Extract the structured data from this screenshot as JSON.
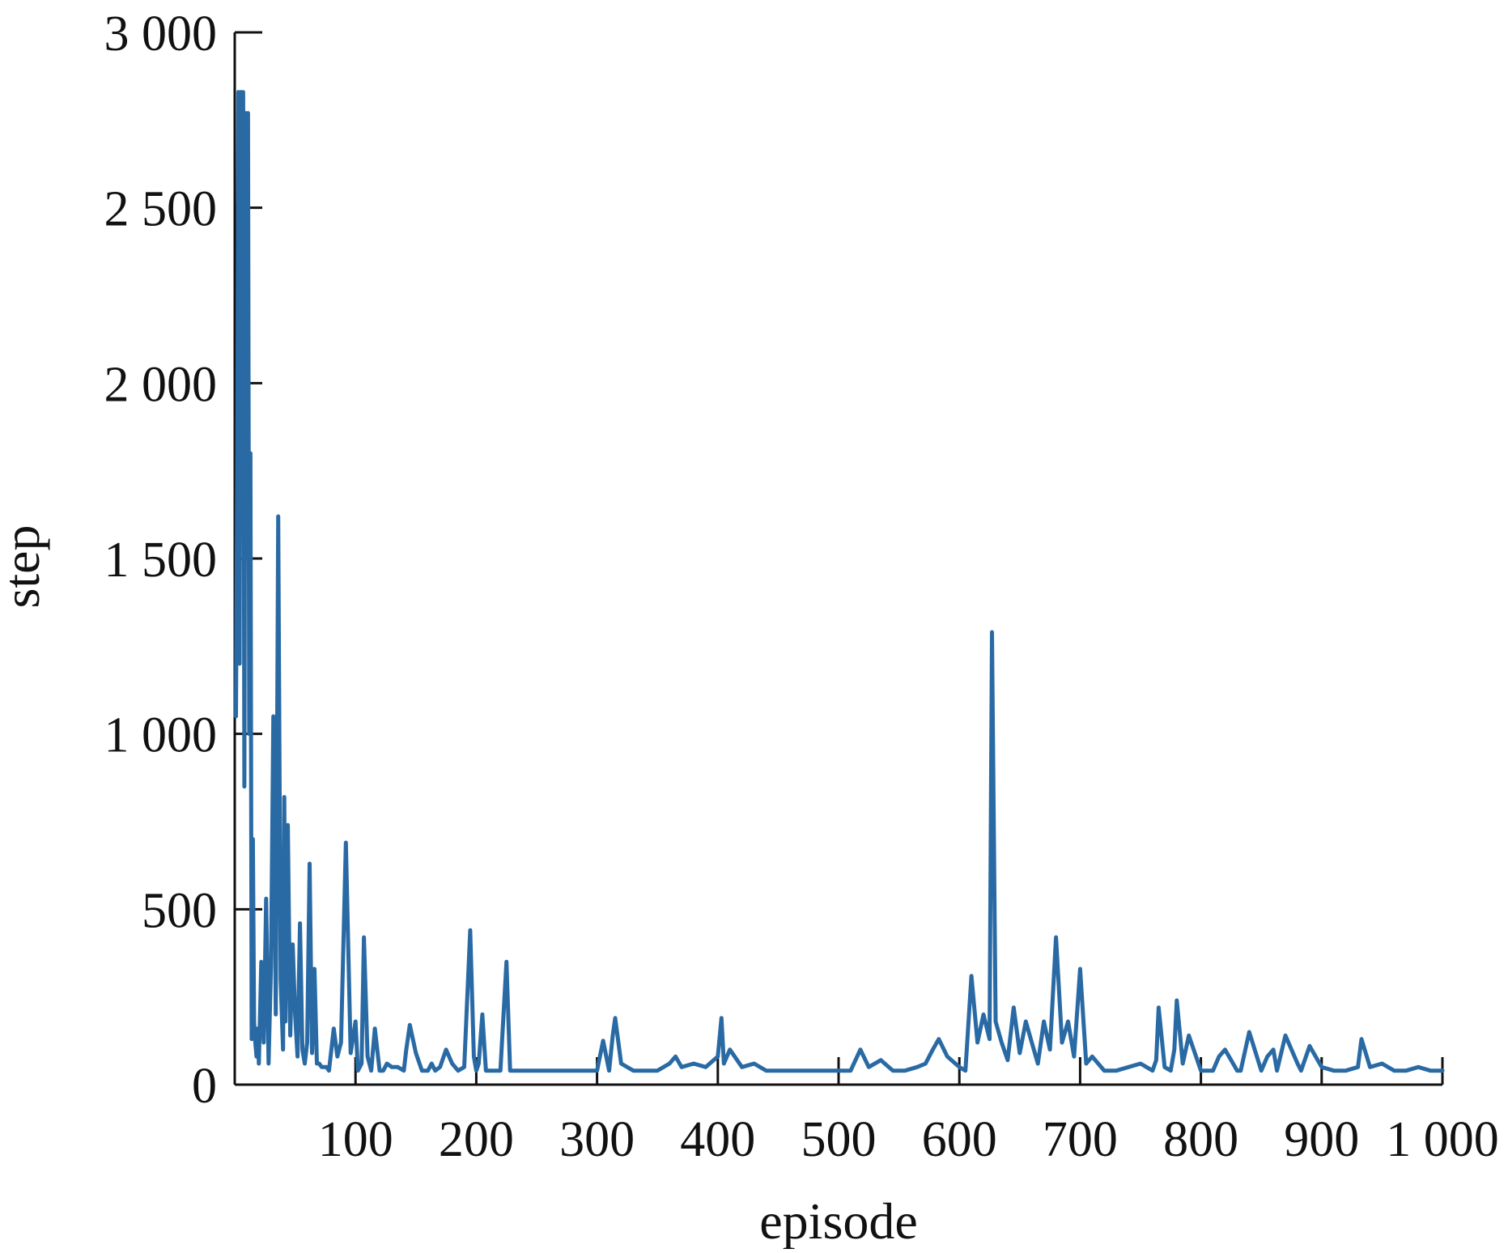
{
  "chart_data": {
    "type": "line",
    "title": "",
    "xlabel": "episode",
    "ylabel": "step",
    "xlim": [
      0,
      1000
    ],
    "ylim": [
      0,
      3000
    ],
    "x_ticks": [
      100,
      200,
      300,
      400,
      500,
      600,
      700,
      800,
      900,
      1000
    ],
    "x_tick_labels": [
      "100",
      "200",
      "300",
      "400",
      "500",
      "600",
      "700",
      "800",
      "900",
      "1 000"
    ],
    "y_ticks": [
      0,
      500,
      1000,
      1500,
      2000,
      2500,
      3000
    ],
    "y_tick_labels": [
      "0",
      "500",
      "1 000",
      "1 500",
      "2 000",
      "2 500",
      "3 000"
    ],
    "grid": false,
    "legend": "none",
    "line_color": "#2a6aa4",
    "series": [
      {
        "x": [
          1,
          2,
          3,
          4,
          5,
          6,
          7,
          8,
          9,
          10,
          11,
          12,
          13,
          14,
          15,
          16,
          17,
          18,
          19,
          20,
          22,
          24,
          26,
          28,
          30,
          32,
          34,
          36,
          38,
          40,
          41,
          42,
          44,
          46,
          48,
          50,
          52,
          54,
          56,
          58,
          60,
          62,
          64,
          66,
          68,
          70,
          72,
          74,
          76,
          78,
          80,
          82,
          85,
          88,
          92,
          96,
          100,
          102,
          105,
          107,
          110,
          113,
          116,
          120,
          123,
          126,
          130,
          135,
          140,
          142,
          145,
          150,
          155,
          160,
          163,
          166,
          170,
          175,
          180,
          185,
          190,
          195,
          198,
          200,
          202,
          205,
          208,
          210,
          215,
          220,
          225,
          228,
          230,
          235,
          240,
          250,
          260,
          270,
          280,
          290,
          298,
          300,
          305,
          310,
          313,
          315,
          320,
          330,
          340,
          350,
          360,
          365,
          370,
          380,
          390,
          400,
          403,
          405,
          410,
          420,
          430,
          440,
          450,
          460,
          470,
          480,
          490,
          500,
          510,
          518,
          525,
          535,
          545,
          555,
          565,
          572,
          578,
          583,
          590,
          600,
          605,
          610,
          615,
          620,
          625,
          627,
          630,
          635,
          640,
          645,
          650,
          655,
          660,
          665,
          670,
          675,
          680,
          685,
          690,
          695,
          700,
          705,
          710,
          720,
          730,
          740,
          750,
          760,
          763,
          765,
          770,
          775,
          778,
          780,
          785,
          790,
          800,
          810,
          815,
          820,
          830,
          833,
          840,
          850,
          855,
          860,
          863,
          870,
          880,
          883,
          890,
          900,
          910,
          920,
          930,
          933,
          940,
          950,
          960,
          970,
          980,
          990,
          1000
        ],
        "y": [
          1050,
          1700,
          2830,
          1200,
          2830,
          2500,
          2830,
          850,
          2770,
          1500,
          2770,
          1000,
          1800,
          130,
          700,
          180,
          120,
          80,
          160,
          60,
          350,
          120,
          530,
          60,
          340,
          1050,
          200,
          1620,
          300,
          100,
          820,
          180,
          740,
          140,
          400,
          200,
          80,
          460,
          100,
          60,
          120,
          630,
          90,
          330,
          60,
          60,
          50,
          50,
          50,
          40,
          100,
          160,
          80,
          120,
          690,
          90,
          180,
          40,
          60,
          420,
          80,
          40,
          160,
          40,
          40,
          60,
          50,
          50,
          40,
          100,
          170,
          90,
          40,
          40,
          60,
          40,
          50,
          100,
          60,
          40,
          50,
          440,
          80,
          40,
          60,
          200,
          40,
          40,
          40,
          40,
          350,
          40,
          40,
          40,
          40,
          40,
          40,
          40,
          40,
          40,
          40,
          40,
          125,
          40,
          140,
          190,
          60,
          40,
          40,
          40,
          60,
          80,
          50,
          60,
          50,
          80,
          190,
          60,
          100,
          50,
          60,
          40,
          40,
          40,
          40,
          40,
          40,
          40,
          40,
          100,
          50,
          70,
          40,
          40,
          50,
          60,
          100,
          130,
          80,
          50,
          40,
          310,
          120,
          200,
          130,
          1290,
          180,
          120,
          70,
          220,
          90,
          180,
          120,
          60,
          180,
          100,
          420,
          120,
          180,
          80,
          330,
          60,
          80,
          40,
          40,
          50,
          60,
          40,
          70,
          220,
          50,
          40,
          100,
          240,
          60,
          140,
          40,
          40,
          80,
          100,
          40,
          40,
          150,
          40,
          80,
          100,
          40,
          140,
          60,
          40,
          110,
          50,
          40,
          40,
          50,
          130,
          50,
          60,
          40,
          40,
          50,
          40,
          40
        ]
      }
    ]
  }
}
